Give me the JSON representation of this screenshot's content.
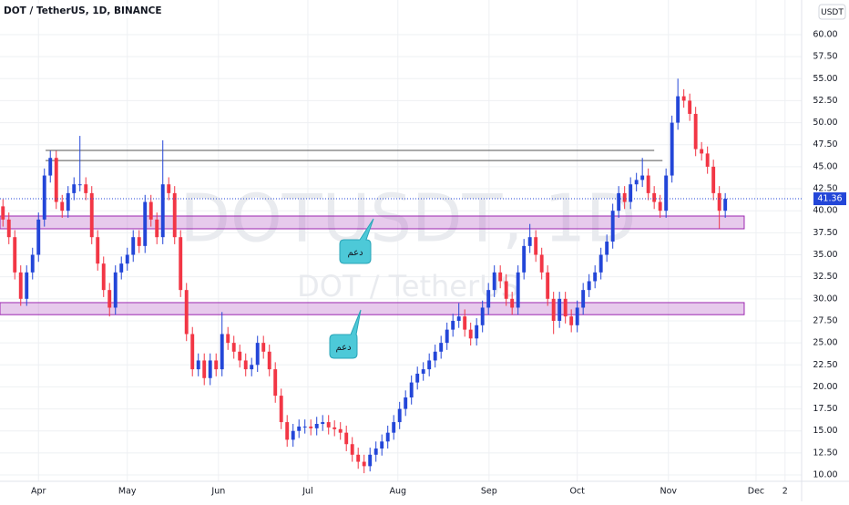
{
  "chart_data": {
    "type": "candlestick",
    "title": "DOT / TetherUS, 1D, BINANCE",
    "currency": "USDT",
    "watermark": "DOTUSDT, 1D",
    "watermark_sub": "DOT / TetherUS",
    "last_price": {
      "value": 41.36,
      "label": "41.36"
    },
    "up_color": "#2346d8",
    "down_color": "#f23645",
    "xlim": [
      -0.5,
      134.9
    ],
    "ylim": [
      9.28,
      63.93
    ],
    "grid": true,
    "xticks": [
      {
        "value": 6,
        "label": "Apr"
      },
      {
        "value": 21,
        "label": "May"
      },
      {
        "value": 36.4,
        "label": "Jun"
      },
      {
        "value": 51.5,
        "label": "Jul"
      },
      {
        "value": 66.7,
        "label": "Aug"
      },
      {
        "value": 82.1,
        "label": "Sep"
      },
      {
        "value": 97,
        "label": "Oct"
      },
      {
        "value": 112.4,
        "label": "Nov"
      },
      {
        "value": 127.2,
        "label": "Dec"
      },
      {
        "value": 132.1,
        "label": "2"
      }
    ],
    "yticks": [
      {
        "value": 10,
        "label": "10.00"
      },
      {
        "value": 12.5,
        "label": "12.50"
      },
      {
        "value": 15,
        "label": "15.00"
      },
      {
        "value": 17.5,
        "label": "17.50"
      },
      {
        "value": 20,
        "label": "20.00"
      },
      {
        "value": 22.5,
        "label": "22.50"
      },
      {
        "value": 25,
        "label": "25.00"
      },
      {
        "value": 27.5,
        "label": "27.50"
      },
      {
        "value": 30,
        "label": "30.00"
      },
      {
        "value": 32.5,
        "label": "32.50"
      },
      {
        "value": 35,
        "label": "35.00"
      },
      {
        "value": 37.5,
        "label": "37.50"
      },
      {
        "value": 40,
        "label": "40.00"
      },
      {
        "value": 42.5,
        "label": "42.50"
      },
      {
        "value": 45,
        "label": "45.00"
      },
      {
        "value": 47.5,
        "label": "47.50"
      },
      {
        "value": 50,
        "label": "50.00"
      },
      {
        "value": 52.5,
        "label": "52.50"
      },
      {
        "value": 55,
        "label": "55.00"
      },
      {
        "value": 57.5,
        "label": "57.50"
      },
      {
        "value": 60,
        "label": "60.00"
      }
    ],
    "open": [
      40.5,
      39,
      37,
      33,
      30,
      33,
      35,
      39,
      44,
      46,
      41,
      40,
      42,
      43,
      43,
      42,
      37,
      34,
      31,
      29,
      33,
      34,
      35,
      37,
      36,
      41,
      39,
      37,
      43,
      42,
      37,
      31,
      26,
      22,
      23,
      21,
      23,
      22,
      26,
      25,
      24,
      23,
      22,
      22.5,
      25,
      24,
      22,
      19,
      16,
      14,
      15,
      15.5,
      15.5,
      15.3,
      15.8,
      16,
      15.4,
      15.2,
      14.8,
      13.5,
      12.3,
      11.5,
      11,
      12.3,
      13,
      13.8,
      14.8,
      16,
      17.5,
      18.8,
      20.5,
      21.5,
      22,
      23,
      24,
      25,
      26.5,
      27.5,
      28,
      26.5,
      25.5,
      27,
      29,
      31,
      33,
      32,
      30,
      29,
      33,
      36,
      37,
      35,
      33,
      30,
      27.5,
      30,
      28,
      27,
      29,
      31,
      32,
      33,
      35,
      36.5,
      40,
      42,
      41,
      43,
      43.5,
      44,
      42,
      41,
      40,
      44,
      50,
      53,
      52.5,
      51,
      47,
      46.5,
      45,
      42,
      40
    ],
    "high": [
      41.3,
      39.8,
      37.8,
      33.8,
      33.8,
      35.8,
      39.8,
      44.8,
      46.8,
      46.8,
      41.8,
      42.8,
      43.8,
      48.5,
      43.8,
      42.8,
      37.8,
      34.8,
      31.8,
      33.8,
      34.8,
      35.8,
      37.8,
      37.8,
      41.8,
      41.8,
      39.8,
      48,
      43.8,
      42.8,
      37.8,
      31.8,
      26.8,
      23.8,
      23.8,
      23.8,
      23.8,
      28.5,
      26.8,
      25.8,
      24.8,
      23.8,
      23.3,
      25.8,
      25.8,
      24.8,
      22.8,
      19.8,
      16.8,
      15.8,
      16.3,
      16.3,
      16.3,
      16.6,
      16.8,
      16.8,
      16.2,
      16,
      15.6,
      14.3,
      13.1,
      12.3,
      13.1,
      13.8,
      14.6,
      15.6,
      16.8,
      18.3,
      19.6,
      21.3,
      22.3,
      22.8,
      23.8,
      24.8,
      25.8,
      27.3,
      28.3,
      29.5,
      28.8,
      27.3,
      27.8,
      29.8,
      31.8,
      33.8,
      33.8,
      32.8,
      30.8,
      33.8,
      36.8,
      38.5,
      37.8,
      35.8,
      33.8,
      30.8,
      30.8,
      30.8,
      28.8,
      29.8,
      31.8,
      32.8,
      33.8,
      35.8,
      37.3,
      40.8,
      42.8,
      42.8,
      43.8,
      44.3,
      46,
      44.8,
      42.8,
      41.8,
      44.8,
      50.8,
      55,
      53.8,
      53.3,
      51.8,
      47.8,
      47.3,
      45.8,
      42.8,
      42
    ],
    "low": [
      38.2,
      36.2,
      32.2,
      29.2,
      29.2,
      32.2,
      34.2,
      38.2,
      43.2,
      40.2,
      39.2,
      39.2,
      41.2,
      42.2,
      41.2,
      36.2,
      33.2,
      30.2,
      28,
      28.2,
      32.2,
      33.2,
      34.2,
      35.2,
      35.2,
      38.2,
      36.2,
      36.2,
      41.2,
      36.2,
      30.2,
      25.2,
      21.2,
      21.2,
      20.2,
      20.2,
      21.2,
      21.2,
      24.2,
      23.2,
      22.2,
      21.2,
      21.2,
      21.7,
      23.2,
      21.2,
      18.2,
      15.2,
      13.2,
      13.2,
      14.2,
      14.7,
      14.5,
      14.5,
      15,
      14.6,
      14.4,
      14,
      12.7,
      11.5,
      10.7,
      10.2,
      10.4,
      11.5,
      12.2,
      13,
      14,
      15.2,
      16.7,
      18,
      19.7,
      20.7,
      21.2,
      22.2,
      23.2,
      24.2,
      25.7,
      26.7,
      25.7,
      24.7,
      24.7,
      26.2,
      28.2,
      30.2,
      31.2,
      29.2,
      28.2,
      28.2,
      32.2,
      35.2,
      34.2,
      32.2,
      29.2,
      26,
      26.7,
      27.2,
      26.2,
      26.2,
      28.2,
      30.2,
      31.2,
      32.2,
      34.2,
      35.7,
      39.2,
      40.2,
      40.2,
      42.2,
      42.7,
      41.2,
      40.2,
      39.2,
      39.2,
      43.2,
      49.2,
      51.7,
      50.2,
      46.2,
      45.7,
      44.2,
      41.2,
      38,
      39.2
    ],
    "close": [
      39,
      37,
      33,
      30,
      33,
      35,
      39,
      44,
      46,
      41,
      40,
      42,
      43,
      43,
      42,
      37,
      34,
      31,
      29,
      33,
      34,
      35,
      37,
      36,
      41,
      39,
      37,
      43,
      42,
      37,
      31,
      26,
      22,
      23,
      21,
      23,
      22,
      26,
      25,
      24,
      23,
      22,
      22.5,
      25,
      24,
      22,
      19,
      16,
      14,
      15,
      15.5,
      15.5,
      15.3,
      15.8,
      16,
      15.4,
      15.2,
      14.8,
      13.5,
      12.3,
      11.5,
      11,
      12.3,
      13,
      13.8,
      14.8,
      16,
      17.5,
      18.8,
      20.5,
      21.5,
      22,
      23,
      24,
      25,
      26.5,
      27.5,
      28,
      26.5,
      25.5,
      27,
      29,
      31,
      33,
      32,
      30,
      29,
      33,
      36,
      37,
      35,
      33,
      30,
      27.5,
      30,
      28,
      27,
      29,
      31,
      32,
      33,
      35,
      36.5,
      40,
      42,
      41,
      43,
      43.5,
      44,
      42,
      41,
      40,
      44,
      50,
      53,
      52.5,
      51,
      47,
      46.5,
      45,
      42,
      40,
      41.36
    ],
    "zones": [
      {
        "from": 37.95,
        "to": 39.4,
        "x": [
          -0.5,
          125.2
        ]
      },
      {
        "from": 28.2,
        "to": 29.57,
        "x": [
          -0.5,
          125.2
        ]
      }
    ],
    "levels": [
      {
        "value": 46.85,
        "x": [
          7.2,
          110
        ]
      },
      {
        "value": 45.7,
        "x": [
          7.2,
          111.4
        ]
      }
    ],
    "callouts": [
      {
        "text": "دعم"
      },
      {
        "text": "دعم"
      }
    ]
  }
}
